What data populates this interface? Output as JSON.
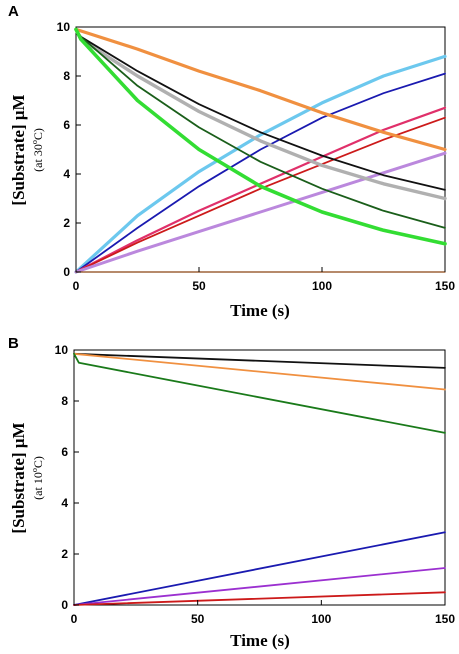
{
  "chart_data": [
    {
      "panel": "A",
      "type": "line",
      "xlabel": "Time (s)",
      "ylabel": "[Substrate] μM",
      "ylabel_sub": "(at 30",
      "ylabel_sub_sup": "o",
      "ylabel_sub_end": "C)",
      "xlim": [
        0,
        150
      ],
      "ylim": [
        0,
        10
      ],
      "xticks": [
        0,
        50,
        100,
        150
      ],
      "yticks": [
        0,
        2,
        4,
        6,
        8,
        10
      ],
      "series": [
        {
          "color": "#6cc8ee",
          "width": 3.2,
          "x": [
            0,
            25,
            50,
            75,
            100,
            125,
            150
          ],
          "y": [
            0,
            2.3,
            4.1,
            5.6,
            6.9,
            8.0,
            8.8
          ]
        },
        {
          "color": "#1a1ab0",
          "width": 1.8,
          "x": [
            0,
            25,
            50,
            75,
            100,
            125,
            150
          ],
          "y": [
            0,
            1.8,
            3.5,
            5.0,
            6.3,
            7.3,
            8.1
          ]
        },
        {
          "color": "#e0306a",
          "width": 2.2,
          "x": [
            0,
            25,
            50,
            75,
            100,
            125,
            150
          ],
          "y": [
            0,
            1.3,
            2.5,
            3.6,
            4.7,
            5.8,
            6.7
          ]
        },
        {
          "color": "#cc1a1a",
          "width": 1.8,
          "x": [
            0,
            25,
            50,
            75,
            100,
            125,
            150
          ],
          "y": [
            0,
            1.2,
            2.3,
            3.4,
            4.4,
            5.4,
            6.3
          ]
        },
        {
          "color": "#bb88dd",
          "width": 3.0,
          "x": [
            0,
            25,
            50,
            75,
            100,
            125,
            150
          ],
          "y": [
            0,
            0.85,
            1.65,
            2.45,
            3.25,
            4.05,
            4.85
          ]
        },
        {
          "color": "#b0b0b0",
          "width": 3.4,
          "x": [
            0,
            2,
            25,
            50,
            75,
            100,
            125,
            150
          ],
          "y": [
            9.9,
            9.5,
            8.0,
            6.55,
            5.35,
            4.35,
            3.6,
            3.0
          ]
        },
        {
          "color": "#111111",
          "width": 1.8,
          "x": [
            0,
            2,
            25,
            50,
            75,
            100,
            125,
            150
          ],
          "y": [
            9.9,
            9.6,
            8.2,
            6.85,
            5.7,
            4.75,
            3.95,
            3.35
          ]
        },
        {
          "color": "#f09040",
          "width": 3.2,
          "x": [
            0,
            25,
            50,
            75,
            100,
            125,
            150
          ],
          "y": [
            9.9,
            9.1,
            8.2,
            7.4,
            6.5,
            5.7,
            5.0
          ]
        },
        {
          "color": "#1a5e1a",
          "width": 1.8,
          "x": [
            0,
            2,
            25,
            50,
            75,
            100,
            125,
            150
          ],
          "y": [
            9.9,
            9.6,
            7.6,
            5.9,
            4.5,
            3.4,
            2.5,
            1.8
          ]
        },
        {
          "color": "#33dd33",
          "width": 3.6,
          "x": [
            0,
            2,
            25,
            50,
            75,
            100,
            125,
            150
          ],
          "y": [
            9.9,
            9.5,
            7.0,
            5.0,
            3.5,
            2.45,
            1.7,
            1.15
          ]
        },
        {
          "color": "#8b4513",
          "width": 1.2,
          "x": [
            0,
            150
          ],
          "y": [
            0,
            0
          ]
        }
      ]
    },
    {
      "panel": "B",
      "type": "line",
      "xlabel": "Time (s)",
      "ylabel": "[Substrate] μM",
      "ylabel_sub": "(at 10",
      "ylabel_sub_sup": "o",
      "ylabel_sub_end": "C)",
      "xlim": [
        0,
        150
      ],
      "ylim": [
        0,
        10
      ],
      "xticks": [
        0,
        50,
        100,
        150
      ],
      "yticks": [
        0,
        2,
        4,
        6,
        8,
        10
      ],
      "series": [
        {
          "color": "#111111",
          "width": 1.8,
          "x": [
            0,
            150
          ],
          "y": [
            9.85,
            9.3
          ]
        },
        {
          "color": "#f09040",
          "width": 1.8,
          "x": [
            0,
            150
          ],
          "y": [
            9.85,
            8.45
          ]
        },
        {
          "color": "#1a7a1a",
          "width": 1.8,
          "x": [
            0,
            2,
            150
          ],
          "y": [
            9.85,
            9.5,
            6.75
          ]
        },
        {
          "color": "#1a1ab0",
          "width": 1.8,
          "x": [
            0,
            150
          ],
          "y": [
            0,
            2.85
          ]
        },
        {
          "color": "#9b30d0",
          "width": 1.8,
          "x": [
            0,
            150
          ],
          "y": [
            0,
            1.45
          ]
        },
        {
          "color": "#cc1a1a",
          "width": 1.8,
          "x": [
            0,
            150
          ],
          "y": [
            0,
            0.5
          ]
        }
      ]
    }
  ]
}
